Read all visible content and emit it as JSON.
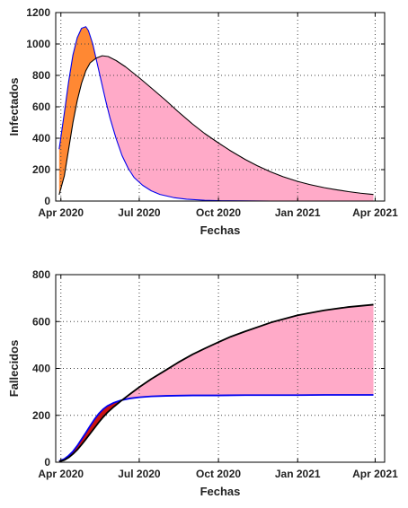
{
  "colors": {
    "orange_fill": "#ff8833",
    "pink_fill": "#ffaac8",
    "red_fill": "#cc1111",
    "blue_line": "#0000ee",
    "black_line": "#000000"
  },
  "chart_data": [
    {
      "type": "area",
      "xlabel": "Fechas",
      "ylabel": "Infectados",
      "ylim": [
        0,
        1200
      ],
      "yticks": [
        "0",
        "200",
        "400",
        "600",
        "800",
        "1000",
        "1200"
      ],
      "xlim": [
        "2020-03-26",
        "2021-04-12"
      ],
      "xticks": [
        "Apr 2020",
        "Jul 2020",
        "Oct 2020",
        "Jan 2021",
        "Apr 2021"
      ],
      "grid": true,
      "series": [
        {
          "color": "#0000ee",
          "x": [
            "2020-03-30",
            "2020-04-05",
            "2020-04-10",
            "2020-04-15",
            "2020-04-20",
            "2020-04-25",
            "2020-04-30",
            "2020-05-03",
            "2020-05-08",
            "2020-05-13",
            "2020-05-18",
            "2020-05-23",
            "2020-05-28",
            "2020-06-04",
            "2020-06-11",
            "2020-06-18",
            "2020-06-25",
            "2020-07-05",
            "2020-07-15",
            "2020-07-25",
            "2020-08-10",
            "2020-08-25",
            "2020-09-15",
            "2020-10-05",
            "2020-11-01",
            "2020-12-01",
            "2021-01-01",
            "2021-02-01",
            "2021-03-01",
            "2021-03-30"
          ],
          "values": [
            330,
            560,
            760,
            930,
            1040,
            1100,
            1110,
            1085,
            1000,
            880,
            760,
            640,
            530,
            400,
            290,
            210,
            150,
            100,
            65,
            42,
            22,
            12,
            5,
            2,
            1,
            0,
            0,
            0,
            0,
            0
          ]
        },
        {
          "color": "#000000",
          "x": [
            "2020-03-30",
            "2020-04-05",
            "2020-04-10",
            "2020-04-15",
            "2020-04-20",
            "2020-04-25",
            "2020-04-30",
            "2020-05-05",
            "2020-05-12",
            "2020-05-19",
            "2020-05-26",
            "2020-06-04",
            "2020-06-15",
            "2020-07-01",
            "2020-07-15",
            "2020-08-01",
            "2020-08-15",
            "2020-09-01",
            "2020-09-15",
            "2020-10-01",
            "2020-10-15",
            "2020-11-01",
            "2020-11-15",
            "2020-12-01",
            "2020-12-15",
            "2021-01-01",
            "2021-01-15",
            "2021-02-01",
            "2021-02-15",
            "2021-03-01",
            "2021-03-15",
            "2021-03-30"
          ],
          "values": [
            40,
            160,
            330,
            500,
            640,
            750,
            830,
            880,
            910,
            925,
            920,
            895,
            855,
            785,
            720,
            640,
            570,
            490,
            430,
            370,
            320,
            265,
            225,
            185,
            155,
            125,
            105,
            85,
            72,
            60,
            50,
            42
          ]
        }
      ]
    },
    {
      "type": "area",
      "xlabel": "Fechas",
      "ylabel": "Fallecidos",
      "ylim": [
        0,
        800
      ],
      "yticks": [
        "0",
        "200",
        "400",
        "600",
        "800"
      ],
      "xlim": [
        "2020-03-26",
        "2021-04-12"
      ],
      "xticks": [
        "Apr 2020",
        "Jul 2020",
        "Oct 2020",
        "Jan 2021",
        "Apr 2021"
      ],
      "grid": true,
      "series": [
        {
          "color": "#0000ee",
          "x": [
            "2020-03-30",
            "2020-04-05",
            "2020-04-10",
            "2020-04-15",
            "2020-04-20",
            "2020-04-25",
            "2020-04-30",
            "2020-05-05",
            "2020-05-10",
            "2020-05-15",
            "2020-05-20",
            "2020-05-25",
            "2020-06-01",
            "2020-06-10",
            "2020-06-20",
            "2020-07-01",
            "2020-07-15",
            "2020-08-01",
            "2020-08-15",
            "2020-09-01",
            "2020-10-01",
            "2020-11-01",
            "2020-12-01",
            "2021-01-01",
            "2021-02-01",
            "2021-03-01",
            "2021-03-30"
          ],
          "values": [
            5,
            14,
            28,
            46,
            70,
            98,
            126,
            155,
            183,
            207,
            226,
            240,
            253,
            264,
            272,
            277,
            281,
            283,
            284,
            285,
            285,
            286,
            286,
            286,
            287,
            287,
            287
          ]
        },
        {
          "color": "#000000",
          "x": [
            "2020-03-30",
            "2020-04-05",
            "2020-04-10",
            "2020-04-15",
            "2020-04-20",
            "2020-04-25",
            "2020-04-30",
            "2020-05-05",
            "2020-05-10",
            "2020-05-15",
            "2020-05-20",
            "2020-05-25",
            "2020-06-01",
            "2020-06-10",
            "2020-06-20",
            "2020-07-01",
            "2020-07-15",
            "2020-08-01",
            "2020-08-15",
            "2020-09-01",
            "2020-09-15",
            "2020-10-01",
            "2020-10-15",
            "2020-11-01",
            "2020-12-01",
            "2021-01-01",
            "2021-02-01",
            "2021-03-01",
            "2021-03-30"
          ],
          "values": [
            3,
            9,
            20,
            35,
            53,
            75,
            98,
            122,
            146,
            170,
            192,
            212,
            235,
            262,
            290,
            320,
            355,
            393,
            425,
            460,
            485,
            512,
            535,
            558,
            596,
            627,
            648,
            662,
            672
          ]
        }
      ]
    }
  ]
}
